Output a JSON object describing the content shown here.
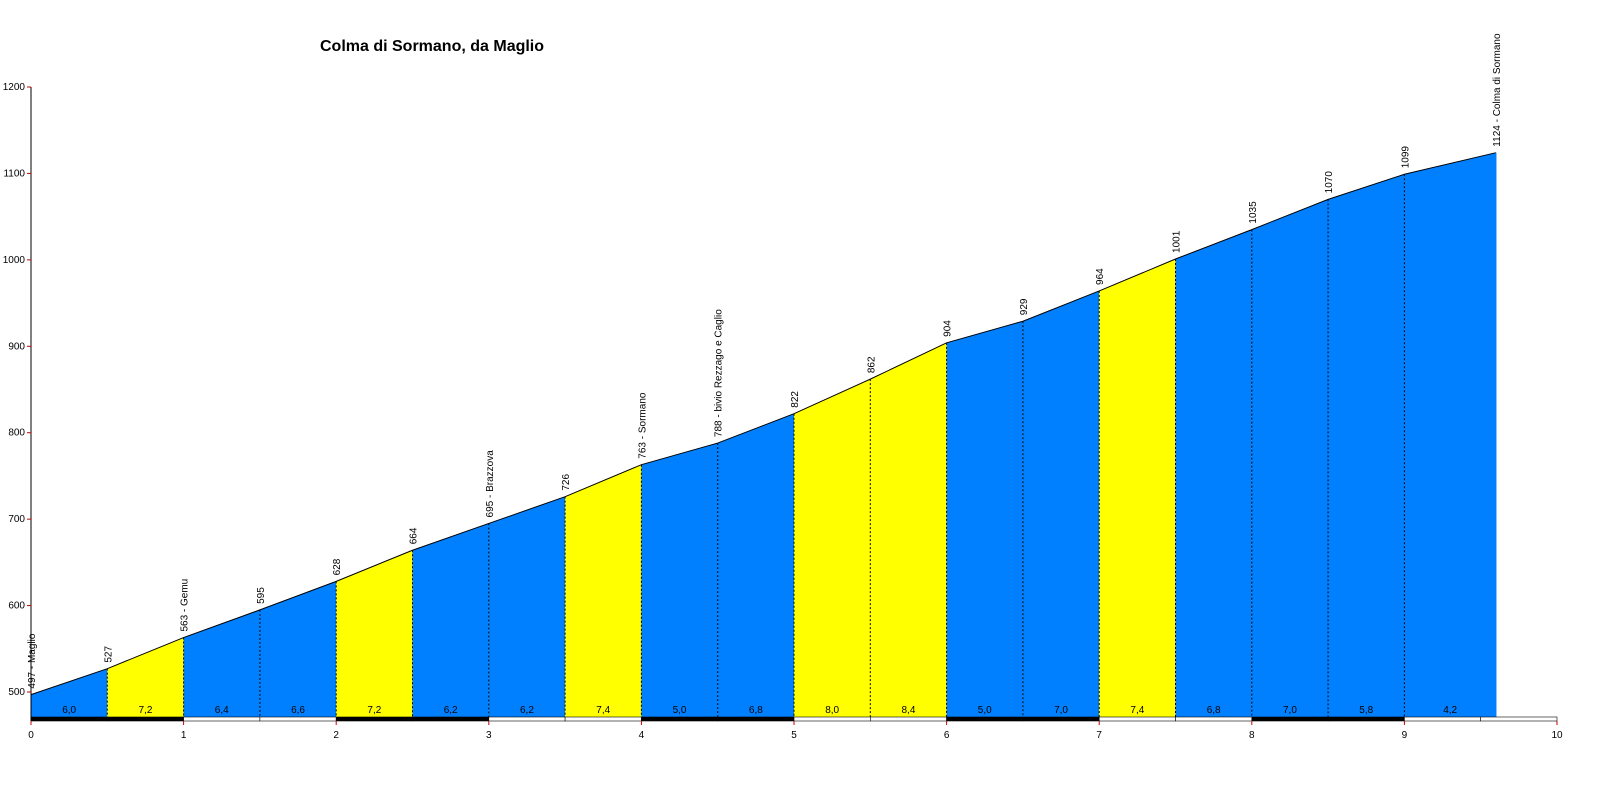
{
  "chart_data": {
    "type": "area",
    "title": "Colma di Sormano, da Maglio",
    "xlabel": "",
    "ylabel": "",
    "xlim": [
      0,
      10
    ],
    "ylim": [
      470,
      1200
    ],
    "y_ticks": [
      500,
      600,
      700,
      800,
      900,
      1000,
      1100,
      1200
    ],
    "x_ticks": [
      0,
      1,
      2,
      3,
      4,
      5,
      6,
      7,
      8,
      9,
      10
    ],
    "grid": false,
    "colors": {
      "blue": "#0080ff",
      "yellow": "#ffff00",
      "axis_tick": "#cc0000",
      "outline": "#000000"
    },
    "points": [
      {
        "x": 0.0,
        "y": 497,
        "label": "497 - Maglio"
      },
      {
        "x": 0.5,
        "y": 527,
        "label": "527"
      },
      {
        "x": 1.0,
        "y": 563,
        "label": "563 - Gemu"
      },
      {
        "x": 1.5,
        "y": 595,
        "label": "595"
      },
      {
        "x": 2.0,
        "y": 628,
        "label": "628"
      },
      {
        "x": 2.5,
        "y": 664,
        "label": "664"
      },
      {
        "x": 3.0,
        "y": 695,
        "label": "695 - Brazzova"
      },
      {
        "x": 3.5,
        "y": 726,
        "label": "726"
      },
      {
        "x": 4.0,
        "y": 763,
        "label": "763 - Sormano"
      },
      {
        "x": 4.5,
        "y": 788,
        "label": "788 - bivio Rezzago e Caglio"
      },
      {
        "x": 5.0,
        "y": 822,
        "label": "822"
      },
      {
        "x": 5.5,
        "y": 862,
        "label": "862"
      },
      {
        "x": 6.0,
        "y": 904,
        "label": "904"
      },
      {
        "x": 6.5,
        "y": 929,
        "label": "929"
      },
      {
        "x": 7.0,
        "y": 964,
        "label": "964"
      },
      {
        "x": 7.5,
        "y": 1001,
        "label": "1001"
      },
      {
        "x": 8.0,
        "y": 1035,
        "label": "1035"
      },
      {
        "x": 8.5,
        "y": 1070,
        "label": "1070"
      },
      {
        "x": 9.0,
        "y": 1099,
        "label": "1099"
      },
      {
        "x": 9.6,
        "y": 1124,
        "label": "1124 - Colma di Sormano"
      }
    ],
    "segments": [
      {
        "gradient": "6,0",
        "color": "blue"
      },
      {
        "gradient": "7,2",
        "color": "yellow"
      },
      {
        "gradient": "6,4",
        "color": "blue"
      },
      {
        "gradient": "6,6",
        "color": "blue"
      },
      {
        "gradient": "7,2",
        "color": "yellow"
      },
      {
        "gradient": "6,2",
        "color": "blue"
      },
      {
        "gradient": "6,2",
        "color": "blue"
      },
      {
        "gradient": "7,4",
        "color": "yellow"
      },
      {
        "gradient": "5,0",
        "color": "blue"
      },
      {
        "gradient": "6,8",
        "color": "blue"
      },
      {
        "gradient": "8,0",
        "color": "yellow"
      },
      {
        "gradient": "8,4",
        "color": "yellow"
      },
      {
        "gradient": "5,0",
        "color": "blue"
      },
      {
        "gradient": "7,0",
        "color": "blue"
      },
      {
        "gradient": "7,4",
        "color": "yellow"
      },
      {
        "gradient": "6,8",
        "color": "blue"
      },
      {
        "gradient": "7,0",
        "color": "blue"
      },
      {
        "gradient": "5,8",
        "color": "blue"
      },
      {
        "gradient": "4,2",
        "color": "blue"
      }
    ]
  }
}
